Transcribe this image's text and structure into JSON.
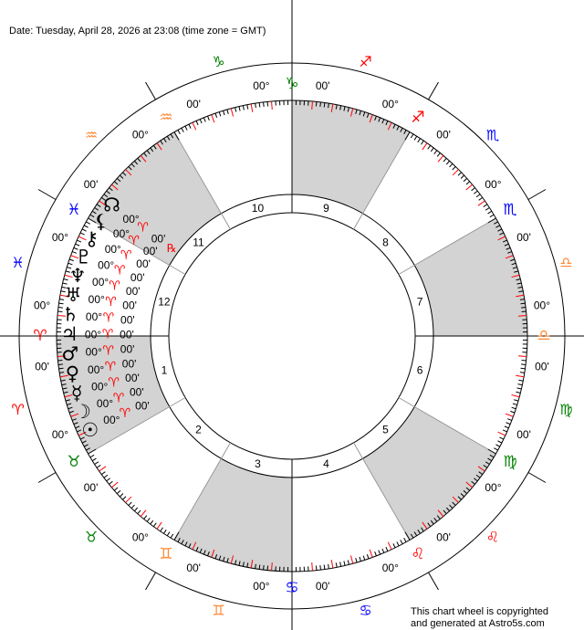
{
  "header": {
    "title": "Date: Tuesday, April 28, 2026 at 23:08 (time zone = GMT)"
  },
  "footer": {
    "line1": "This chart wheel is copyrighted",
    "line2": "and generated at Astro5s.com"
  },
  "colors": {
    "fire": "#ff0000",
    "earth": "#008000",
    "air": "#ff8833",
    "water": "#0000ff",
    "shade": "#d3d3d3",
    "tick_major": "#ff0000"
  },
  "signs": [
    {
      "name": "Aries",
      "glyph": "♈",
      "element": "fire",
      "cusp_degree": "00°",
      "cusp_minute": "00'"
    },
    {
      "name": "Taurus",
      "glyph": "♉",
      "element": "earth",
      "cusp_degree": "00°",
      "cusp_minute": "00'"
    },
    {
      "name": "Gemini",
      "glyph": "♊",
      "element": "air",
      "cusp_degree": "00°",
      "cusp_minute": "00'"
    },
    {
      "name": "Cancer",
      "glyph": "♋",
      "element": "water",
      "cusp_degree": "00°",
      "cusp_minute": "00'"
    },
    {
      "name": "Leo",
      "glyph": "♌",
      "element": "fire",
      "cusp_degree": "00°",
      "cusp_minute": "00'"
    },
    {
      "name": "Virgo",
      "glyph": "♍",
      "element": "earth",
      "cusp_degree": "00°",
      "cusp_minute": "00'"
    },
    {
      "name": "Libra",
      "glyph": "♎",
      "element": "air",
      "cusp_degree": "00°",
      "cusp_minute": "00'"
    },
    {
      "name": "Scorpio",
      "glyph": "♏",
      "element": "water",
      "cusp_degree": "00°",
      "cusp_minute": "00'"
    },
    {
      "name": "Sagittarius",
      "glyph": "♐",
      "element": "fire",
      "cusp_degree": "00°",
      "cusp_minute": "00'"
    },
    {
      "name": "Capricorn",
      "glyph": "♑",
      "element": "earth",
      "cusp_degree": "00°",
      "cusp_minute": "00'"
    },
    {
      "name": "Aquarius",
      "glyph": "♒",
      "element": "air",
      "cusp_degree": "00°",
      "cusp_minute": "00'"
    },
    {
      "name": "Pisces",
      "glyph": "♓",
      "element": "water",
      "cusp_degree": "00°",
      "cusp_minute": "00'"
    }
  ],
  "houses": [
    {
      "number": "1",
      "shaded": true
    },
    {
      "number": "2",
      "shaded": false
    },
    {
      "number": "3",
      "shaded": true
    },
    {
      "number": "4",
      "shaded": false
    },
    {
      "number": "5",
      "shaded": true
    },
    {
      "number": "6",
      "shaded": false
    },
    {
      "number": "7",
      "shaded": true
    },
    {
      "number": "8",
      "shaded": false
    },
    {
      "number": "9",
      "shaded": true
    },
    {
      "number": "10",
      "shaded": false
    },
    {
      "number": "11",
      "shaded": true
    },
    {
      "number": "12",
      "shaded": false
    }
  ],
  "planets": [
    {
      "name": "North Node",
      "glyph": "☊",
      "degree": "00°",
      "sign": "♈",
      "minute": "00'",
      "retrograde": "℞"
    },
    {
      "name": "Lilith",
      "glyph": "⚸",
      "degree": "00°",
      "sign": "♈",
      "minute": "00'",
      "retrograde": ""
    },
    {
      "name": "Chiron",
      "glyph": "⚷",
      "degree": "00°",
      "sign": "♈",
      "minute": "00'",
      "retrograde": ""
    },
    {
      "name": "Pluto",
      "glyph": "♇",
      "degree": "00°",
      "sign": "♈",
      "minute": "00'",
      "retrograde": ""
    },
    {
      "name": "Neptune",
      "glyph": "♆",
      "degree": "00°",
      "sign": "♈",
      "minute": "00'",
      "retrograde": ""
    },
    {
      "name": "Uranus",
      "glyph": "♅",
      "degree": "00°",
      "sign": "♈",
      "minute": "00'",
      "retrograde": ""
    },
    {
      "name": "Saturn",
      "glyph": "♄",
      "degree": "00°",
      "sign": "♈",
      "minute": "00'",
      "retrograde": ""
    },
    {
      "name": "Jupiter",
      "glyph": "♃",
      "degree": "00°",
      "sign": "♈",
      "minute": "00'",
      "retrograde": ""
    },
    {
      "name": "Mars",
      "glyph": "♂",
      "degree": "00°",
      "sign": "♈",
      "minute": "00'",
      "retrograde": ""
    },
    {
      "name": "Venus",
      "glyph": "♀",
      "degree": "00°",
      "sign": "♈",
      "minute": "00'",
      "retrograde": ""
    },
    {
      "name": "Mercury",
      "glyph": "☿",
      "degree": "00°",
      "sign": "♈",
      "minute": "00'",
      "retrograde": ""
    },
    {
      "name": "Moon",
      "glyph": "☽",
      "degree": "00°",
      "sign": "♈",
      "minute": "00'",
      "retrograde": ""
    },
    {
      "name": "Sun",
      "glyph": "☉",
      "degree": "00°",
      "sign": "♈",
      "minute": "00'",
      "retrograde": ""
    }
  ]
}
